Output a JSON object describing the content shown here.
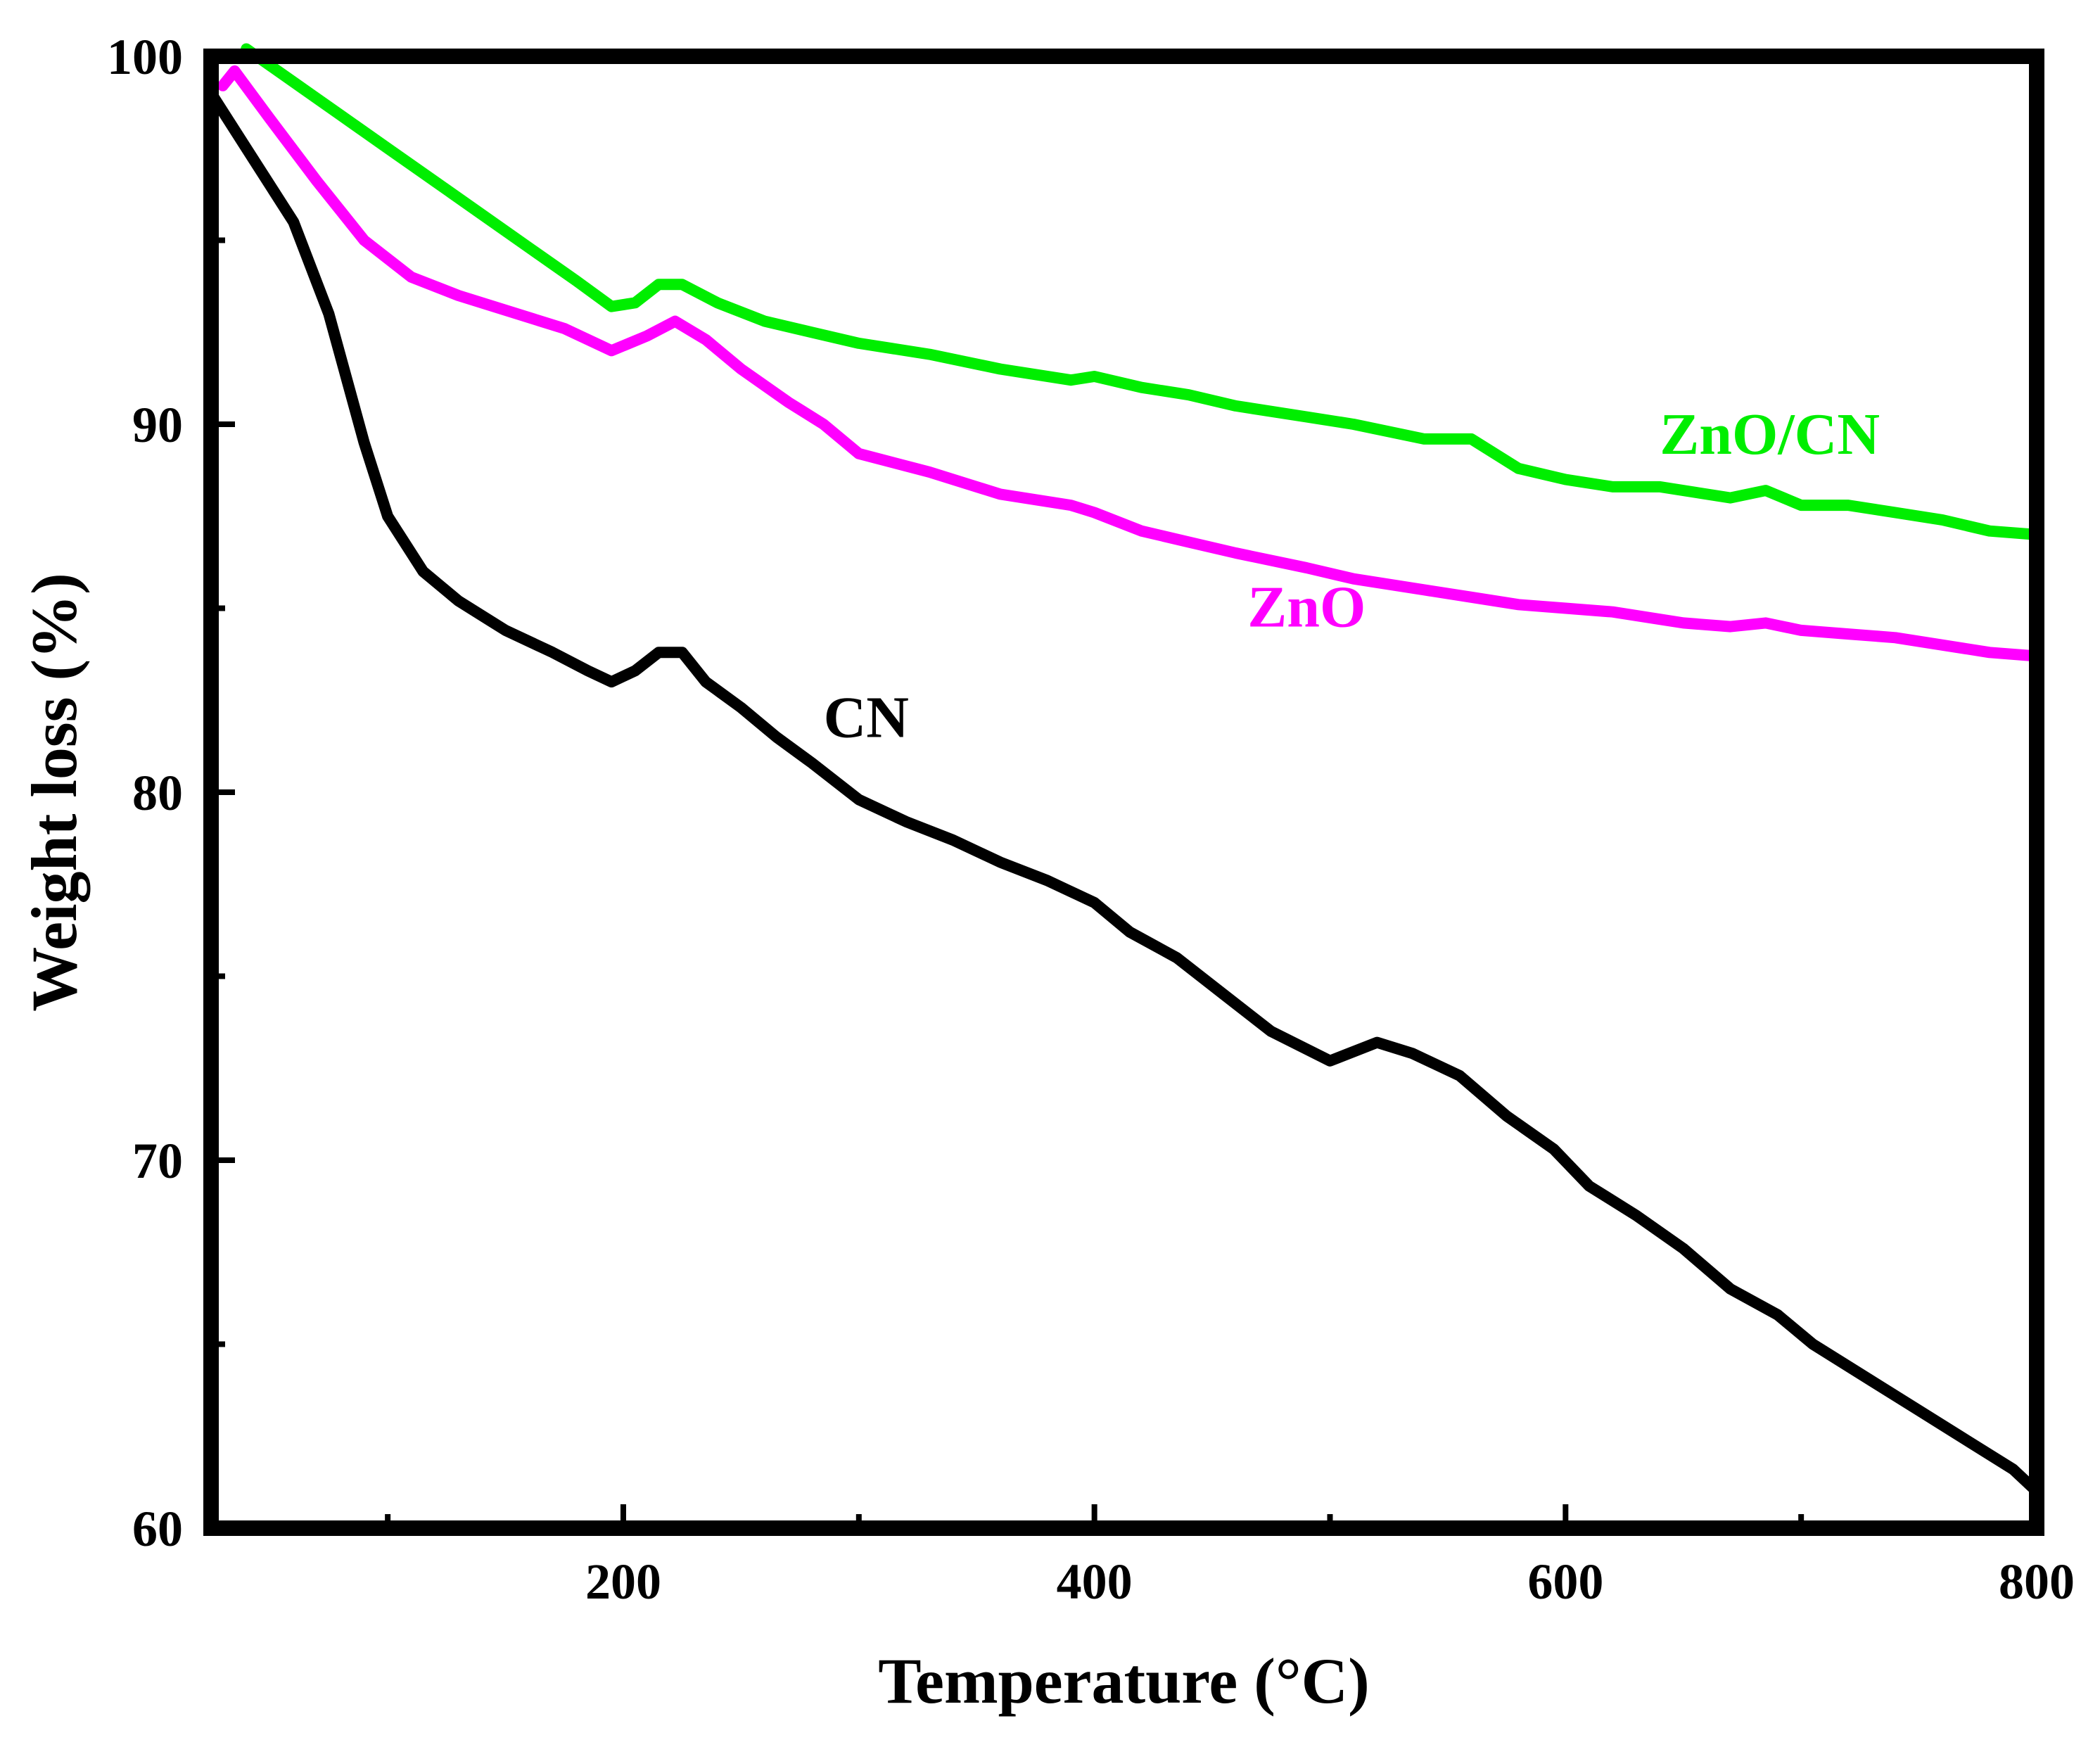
{
  "chart_data": {
    "type": "line",
    "title": "",
    "xlabel": "Temperature (°C)",
    "ylabel": "Weight loss (%)",
    "xlim": [
      25,
      800
    ],
    "ylim": [
      60,
      100
    ],
    "x_ticks": [
      200,
      400,
      600,
      800
    ],
    "x_minor_ticks": [
      100,
      300,
      500,
      700
    ],
    "y_ticks": [
      60,
      70,
      80,
      90,
      100
    ],
    "y_minor_ticks": [
      65,
      75,
      85,
      95
    ],
    "grid": false,
    "series": [
      {
        "name": "ZnO/CN",
        "label": "ZnO/CN",
        "color": "#00ee00",
        "points": [
          [
            40,
            100.2
          ],
          [
            60,
            99.3
          ],
          [
            80,
            98.4
          ],
          [
            100,
            97.5
          ],
          [
            120,
            96.6
          ],
          [
            140,
            95.7
          ],
          [
            160,
            94.8
          ],
          [
            180,
            93.9
          ],
          [
            195,
            93.2
          ],
          [
            205,
            93.3
          ],
          [
            215,
            93.8
          ],
          [
            225,
            93.8
          ],
          [
            240,
            93.3
          ],
          [
            260,
            92.8
          ],
          [
            280,
            92.5
          ],
          [
            300,
            92.2
          ],
          [
            330,
            91.9
          ],
          [
            360,
            91.5
          ],
          [
            390,
            91.2
          ],
          [
            400,
            91.3
          ],
          [
            420,
            91.0
          ],
          [
            440,
            90.8
          ],
          [
            460,
            90.5
          ],
          [
            490,
            90.2
          ],
          [
            510,
            90.0
          ],
          [
            540,
            89.6
          ],
          [
            560,
            89.6
          ],
          [
            580,
            88.8
          ],
          [
            600,
            88.5
          ],
          [
            620,
            88.3
          ],
          [
            640,
            88.3
          ],
          [
            670,
            88.0
          ],
          [
            685,
            88.2
          ],
          [
            700,
            87.8
          ],
          [
            720,
            87.8
          ],
          [
            740,
            87.6
          ],
          [
            760,
            87.4
          ],
          [
            780,
            87.1
          ],
          [
            800,
            87.0
          ]
        ]
      },
      {
        "name": "ZnO",
        "label": "ZnO",
        "color": "#ff00ff",
        "points": [
          [
            30,
            99.2
          ],
          [
            35,
            99.6
          ],
          [
            50,
            98.3
          ],
          [
            70,
            96.6
          ],
          [
            90,
            95.0
          ],
          [
            110,
            94.0
          ],
          [
            130,
            93.5
          ],
          [
            150,
            93.1
          ],
          [
            175,
            92.6
          ],
          [
            195,
            92.0
          ],
          [
            210,
            92.4
          ],
          [
            222,
            92.8
          ],
          [
            235,
            92.3
          ],
          [
            250,
            91.5
          ],
          [
            270,
            90.6
          ],
          [
            285,
            90.0
          ],
          [
            300,
            89.2
          ],
          [
            330,
            88.7
          ],
          [
            360,
            88.1
          ],
          [
            390,
            87.8
          ],
          [
            400,
            87.6
          ],
          [
            420,
            87.1
          ],
          [
            440,
            86.8
          ],
          [
            460,
            86.5
          ],
          [
            490,
            86.1
          ],
          [
            510,
            85.8
          ],
          [
            540,
            85.5
          ],
          [
            560,
            85.3
          ],
          [
            580,
            85.1
          ],
          [
            600,
            85.0
          ],
          [
            620,
            84.9
          ],
          [
            650,
            84.6
          ],
          [
            670,
            84.5
          ],
          [
            685,
            84.6
          ],
          [
            700,
            84.4
          ],
          [
            720,
            84.3
          ],
          [
            740,
            84.2
          ],
          [
            760,
            84.0
          ],
          [
            780,
            83.8
          ],
          [
            800,
            83.7
          ]
        ]
      },
      {
        "name": "CN",
        "label": "CN",
        "color": "#000000",
        "points": [
          [
            25,
            99.0
          ],
          [
            40,
            97.5
          ],
          [
            60,
            95.5
          ],
          [
            75,
            93.0
          ],
          [
            90,
            89.5
          ],
          [
            100,
            87.5
          ],
          [
            115,
            86.0
          ],
          [
            130,
            85.2
          ],
          [
            150,
            84.4
          ],
          [
            170,
            83.8
          ],
          [
            185,
            83.3
          ],
          [
            195,
            83.0
          ],
          [
            205,
            83.3
          ],
          [
            215,
            83.8
          ],
          [
            225,
            83.8
          ],
          [
            235,
            83.0
          ],
          [
            250,
            82.3
          ],
          [
            265,
            81.5
          ],
          [
            280,
            80.8
          ],
          [
            300,
            79.8
          ],
          [
            320,
            79.2
          ],
          [
            340,
            78.7
          ],
          [
            360,
            78.1
          ],
          [
            380,
            77.6
          ],
          [
            400,
            77.0
          ],
          [
            415,
            76.2
          ],
          [
            435,
            75.5
          ],
          [
            455,
            74.5
          ],
          [
            475,
            73.5
          ],
          [
            500,
            72.7
          ],
          [
            520,
            73.2
          ],
          [
            535,
            72.9
          ],
          [
            555,
            72.3
          ],
          [
            575,
            71.2
          ],
          [
            595,
            70.3
          ],
          [
            610,
            69.3
          ],
          [
            630,
            68.5
          ],
          [
            650,
            67.6
          ],
          [
            670,
            66.5
          ],
          [
            690,
            65.8
          ],
          [
            705,
            65.0
          ],
          [
            730,
            64.0
          ],
          [
            750,
            63.2
          ],
          [
            770,
            62.4
          ],
          [
            790,
            61.6
          ],
          [
            800,
            61.0
          ]
        ]
      }
    ],
    "annotations": [
      {
        "text": "ZnO/CN",
        "series": "ZnO/CN",
        "x": 640,
        "y": 89.2
      },
      {
        "text": "ZnO",
        "series": "ZnO",
        "x": 465,
        "y": 84.5
      },
      {
        "text": "CN",
        "series": "CN",
        "x": 285,
        "y": 81.5
      }
    ]
  }
}
